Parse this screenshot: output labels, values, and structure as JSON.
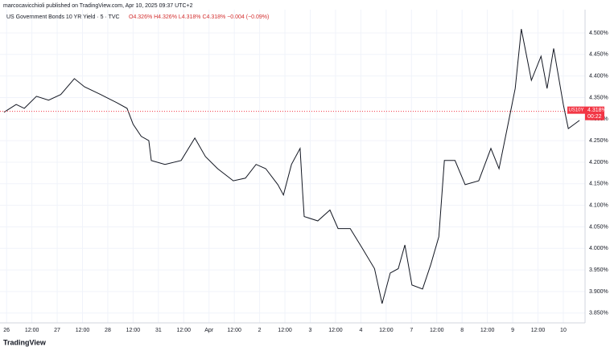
{
  "header": {
    "publisher": "marcocavicchioli published on TradingView.com, Apr 10, 2025 09:37 UTC+2"
  },
  "footer": {
    "logo": "TradingView"
  },
  "chart_data": {
    "type": "line",
    "title": "US Government Bonds 10 YR Yield · 5 · TVC",
    "ohlc": "O4.326% H4.326% L4.318% C4.318% −0.004 (−0.09%)",
    "x": [
      -0.05,
      0.19,
      0.35,
      0.59,
      0.83,
      1.07,
      1.34,
      1.54,
      1.86,
      2.18,
      2.38,
      2.5,
      2.66,
      2.81,
      2.86,
      3.13,
      3.45,
      3.72,
      3.93,
      4.17,
      4.48,
      4.72,
      4.93,
      5.12,
      5.36,
      5.47,
      5.63,
      5.8,
      5.85,
      5.88,
      6.15,
      6.39,
      6.55,
      6.79,
      7.03,
      7.27,
      7.42,
      7.58,
      7.74,
      7.87,
      8.01,
      8.22,
      8.38,
      8.54,
      8.65,
      8.86,
      9.06,
      9.33,
      9.57,
      9.73,
      9.89,
      10.05,
      10.17,
      10.37,
      10.56,
      10.68,
      10.81,
      11.0,
      11.1,
      11.32
    ],
    "series": [
      {
        "name": "US10Y",
        "color": "#131722",
        "values": [
          4.316,
          4.334,
          4.325,
          4.353,
          4.344,
          4.357,
          4.394,
          4.375,
          4.357,
          4.338,
          4.325,
          4.288,
          4.26,
          4.25,
          4.204,
          4.195,
          4.204,
          4.256,
          4.213,
          4.185,
          4.157,
          4.163,
          4.195,
          4.185,
          4.148,
          4.124,
          4.195,
          4.232,
          4.129,
          4.074,
          4.064,
          4.089,
          4.046,
          4.046,
          4.0,
          3.953,
          3.872,
          3.943,
          3.953,
          4.008,
          3.915,
          3.906,
          3.962,
          4.027,
          4.204,
          4.204,
          4.148,
          4.157,
          4.232,
          4.185,
          4.278,
          4.371,
          4.509,
          4.39,
          4.446,
          4.371,
          4.464,
          4.334,
          4.278,
          4.297
        ]
      }
    ],
    "price_tag": {
      "value": 4.318,
      "label": "4.318%",
      "countdown": "00:22",
      "color": "#f23645"
    },
    "xlim": [
      -0.13,
      11.43
    ],
    "ylim": [
      3.831,
      4.554
    ],
    "xticks": [
      {
        "value": 0,
        "label": "26"
      },
      {
        "value": 0.5,
        "label": "12:00"
      },
      {
        "value": 1,
        "label": "27"
      },
      {
        "value": 1.5,
        "label": "12:00"
      },
      {
        "value": 2,
        "label": "28"
      },
      {
        "value": 2.5,
        "label": "12:00"
      },
      {
        "value": 3,
        "label": "31"
      },
      {
        "value": 3.5,
        "label": "12:00"
      },
      {
        "value": 4,
        "label": "Apr"
      },
      {
        "value": 4.5,
        "label": "12:00"
      },
      {
        "value": 5,
        "label": "2"
      },
      {
        "value": 5.5,
        "label": "12:00"
      },
      {
        "value": 6,
        "label": "3"
      },
      {
        "value": 6.5,
        "label": "12:00"
      },
      {
        "value": 7,
        "label": "4"
      },
      {
        "value": 7.5,
        "label": "12:00"
      },
      {
        "value": 8,
        "label": "7"
      },
      {
        "value": 8.5,
        "label": "12:00"
      },
      {
        "value": 9,
        "label": "8"
      },
      {
        "value": 9.5,
        "label": "12:00"
      },
      {
        "value": 10,
        "label": "9"
      },
      {
        "value": 10.5,
        "label": "12:00"
      },
      {
        "value": 11,
        "label": "10"
      }
    ],
    "yticks": [
      {
        "value": 3.85,
        "label": "3.850%"
      },
      {
        "value": 3.9,
        "label": "3.900%"
      },
      {
        "value": 3.95,
        "label": "3.950%"
      },
      {
        "value": 4.0,
        "label": "4.000%"
      },
      {
        "value": 4.05,
        "label": "4.050%"
      },
      {
        "value": 4.1,
        "label": "4.100%"
      },
      {
        "value": 4.15,
        "label": "4.150%"
      },
      {
        "value": 4.2,
        "label": "4.200%"
      },
      {
        "value": 4.25,
        "label": "4.250%"
      },
      {
        "value": 4.3,
        "label": "4.300%"
      },
      {
        "value": 4.35,
        "label": "4.350%"
      },
      {
        "value": 4.4,
        "label": "4.400%"
      },
      {
        "value": 4.45,
        "label": "4.450%"
      },
      {
        "value": 4.5,
        "label": "4.500%"
      }
    ],
    "grid": true
  }
}
